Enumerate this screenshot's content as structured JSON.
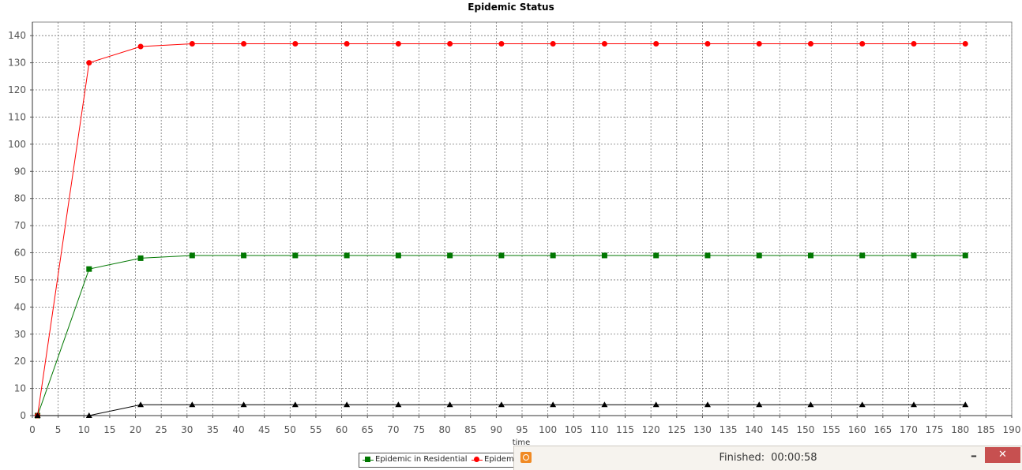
{
  "chart_data": {
    "type": "line",
    "title": "Epidemic Status",
    "xlabel": "time",
    "ylabel": "",
    "xlim": [
      0,
      190
    ],
    "ylim": [
      0,
      145
    ],
    "x_ticks": [
      0,
      5,
      10,
      15,
      20,
      25,
      30,
      35,
      40,
      45,
      50,
      55,
      60,
      65,
      70,
      75,
      80,
      85,
      90,
      95,
      100,
      105,
      110,
      115,
      120,
      125,
      130,
      135,
      140,
      145,
      150,
      155,
      160,
      165,
      170,
      175,
      180,
      185,
      190
    ],
    "y_ticks": [
      0,
      10,
      20,
      30,
      40,
      50,
      60,
      70,
      80,
      90,
      100,
      110,
      120,
      130,
      140
    ],
    "grid": true,
    "legend_position": "bottom-center",
    "x": [
      1,
      11,
      21,
      31,
      41,
      51,
      61,
      71,
      81,
      91,
      101,
      111,
      121,
      131,
      141,
      151,
      161,
      171,
      181
    ],
    "series": [
      {
        "name": "Epidemic in Residential",
        "color": "#007700",
        "marker": "square",
        "values": [
          0,
          54,
          58,
          59,
          59,
          59,
          59,
          59,
          59,
          59,
          59,
          59,
          59,
          59,
          59,
          59,
          59,
          59,
          59
        ]
      },
      {
        "name": "Epidem",
        "color": "#ff0000",
        "marker": "circle",
        "values": [
          0,
          130,
          136,
          137,
          137,
          137,
          137,
          137,
          137,
          137,
          137,
          137,
          137,
          137,
          137,
          137,
          137,
          137,
          137
        ]
      },
      {
        "name": "",
        "color": "#000000",
        "marker": "triangle",
        "values": [
          0,
          0,
          4,
          4,
          4,
          4,
          4,
          4,
          4,
          4,
          4,
          4,
          4,
          4,
          4,
          4,
          4,
          4,
          4
        ]
      }
    ]
  },
  "toast": {
    "status_label": "Finished:",
    "elapsed": "00:00:58",
    "minimize_glyph": "–",
    "close_glyph": "✕",
    "icon": "app-icon"
  }
}
